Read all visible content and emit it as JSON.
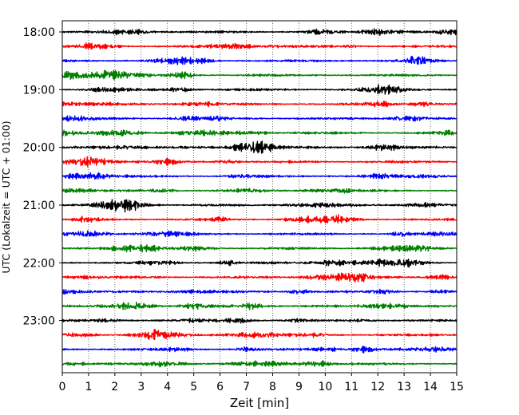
{
  "chart_data": {
    "type": "line",
    "title": "",
    "xlabel": "Zeit  [min]",
    "ylabel": "UTC (Lokalzeit = UTC + 01:00)",
    "xlim": [
      0,
      15
    ],
    "x_ticks": [
      "0",
      "1",
      "2",
      "3",
      "4",
      "5",
      "6",
      "7",
      "8",
      "9",
      "10",
      "11",
      "12",
      "13",
      "14",
      "15"
    ],
    "hour_labels": [
      "18:00",
      "19:00",
      "20:00",
      "21:00",
      "22:00",
      "23:00"
    ],
    "trace_interval_minutes": 15,
    "trace_count": 24,
    "trace_colors": [
      "#000000",
      "#ff0000",
      "#0000ff",
      "#007f00"
    ],
    "grid": "vertical-dotted",
    "legend": "none"
  }
}
